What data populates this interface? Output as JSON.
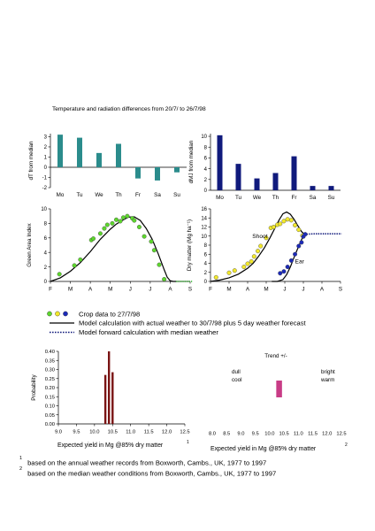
{
  "page": {
    "title": "Temperature and radiation differences from 20/7/ to 26/7/98",
    "footnotes": [
      {
        "mark": "1",
        "text": "based on the annual weather records from Boxworth, Cambs., UK,  1977 to 1997"
      },
      {
        "mark": "2",
        "text": "based on the median weather conditions from Boxworth, Cambs., UK, 1977 to 1997"
      }
    ],
    "legend": [
      {
        "marker": "dots",
        "text": "Crop data to 27/7/98"
      },
      {
        "marker": "solid-line",
        "text": "Model calculation with actual weather to 30/7/98 plus 5 day weather forecast"
      },
      {
        "marker": "dotted-line",
        "text": "Model forward calculation with median weather"
      }
    ],
    "colors": {
      "teal": "#2b8c8c",
      "navy": "#101a7c",
      "green": "#5dd62d",
      "yellow": "#f2e82a",
      "blue": "#1c2ab8",
      "darkred": "#7a1414",
      "pink": "#c83c86"
    }
  },
  "chart_data": [
    {
      "id": "dT",
      "type": "bar",
      "categories": [
        "Mo",
        "Tu",
        "We",
        "Th",
        "Fr",
        "Sa",
        "Su"
      ],
      "values": [
        3.2,
        2.9,
        1.4,
        2.3,
        -1.1,
        -1.3,
        -0.5
      ],
      "ylabel": "dT from median",
      "yticks": [
        "3",
        "2",
        "1",
        "0",
        "-1",
        "-2"
      ],
      "ylim": [
        -2,
        3.3
      ]
    },
    {
      "id": "dMJ",
      "type": "bar",
      "categories": [
        "Mo",
        "Tu",
        "We",
        "Th",
        "Fr",
        "Sa",
        "Su"
      ],
      "values": [
        10.2,
        4.9,
        2.2,
        3.2,
        6.3,
        0.8,
        0.8
      ],
      "ylabel": "dMJ from median",
      "yticks": [
        "10",
        "8",
        "6",
        "4",
        "2",
        "0"
      ],
      "ylim": [
        0,
        10.5
      ]
    },
    {
      "id": "gai",
      "type": "line",
      "xlabels": [
        "F",
        "M",
        "A",
        "M",
        "J",
        "J",
        "A",
        "S"
      ],
      "ylabel": "Green Area Index",
      "yticks": [
        "10",
        "8",
        "6",
        "4",
        "2",
        "0"
      ],
      "ylim": [
        0,
        10
      ],
      "series": [
        {
          "kind": "model-actual",
          "x": [
            1.0,
            1.5,
            2.0,
            2.5,
            3.0,
            3.5,
            4.0,
            4.3,
            4.6,
            4.9,
            5.2,
            5.5,
            5.8,
            6.1,
            6.4,
            6.7,
            6.85,
            7.0,
            7.15,
            7.3
          ],
          "y": [
            0,
            0.5,
            1.4,
            2.6,
            4.1,
            5.8,
            7.2,
            7.9,
            8.4,
            8.85,
            8.9,
            8.4,
            7.3,
            5.8,
            3.8,
            1.6,
            0.6,
            0.1,
            0,
            0
          ]
        },
        {
          "kind": "model-median",
          "x": [
            7.3,
            7.6,
            7.9,
            8.15
          ],
          "y": [
            0,
            0,
            0,
            0
          ]
        },
        {
          "kind": "observed",
          "x": [
            1.45,
            2.2,
            2.5,
            3.05,
            3.15,
            3.5,
            3.7,
            3.85,
            4.1,
            4.3,
            4.5,
            4.65,
            4.85,
            5.1,
            5.2,
            5.45,
            5.7,
            6.05,
            6.2,
            6.45,
            6.7
          ],
          "y": [
            1.0,
            2.2,
            3.0,
            5.7,
            5.9,
            6.6,
            7.3,
            7.8,
            8.0,
            8.5,
            8.3,
            8.8,
            9.0,
            8.7,
            8.4,
            7.5,
            6.2,
            5.5,
            4.3,
            2.3,
            0.3
          ]
        }
      ]
    },
    {
      "id": "drymatter",
      "type": "line",
      "xlabels": [
        "F",
        "M",
        "A",
        "M",
        "J",
        "J",
        "A",
        "S"
      ],
      "ylabel": "Dry matter (Mg ha⁻¹)",
      "yticks": [
        "16",
        "14",
        "12",
        "10",
        "8",
        "6",
        "4",
        "2",
        "0"
      ],
      "ylim": [
        0,
        16
      ],
      "annotations": [
        {
          "text": "Shoot",
          "x": 3.25,
          "y": 9.6
        },
        {
          "text": "Ear",
          "x": 5.55,
          "y": 4.0
        }
      ],
      "series": [
        {
          "kind": "model-shoot",
          "x": [
            1.0,
            1.5,
            2.0,
            2.5,
            3.0,
            3.3,
            3.6,
            3.9,
            4.2,
            4.5,
            4.7,
            4.9,
            5.1,
            5.3,
            5.5,
            5.7,
            5.9,
            6.05
          ],
          "y": [
            0,
            0.3,
            0.8,
            1.6,
            2.9,
            4.0,
            5.6,
            7.4,
            9.6,
            12.0,
            13.6,
            14.9,
            15.3,
            14.8,
            13.7,
            12.3,
            11.0,
            10.4
          ]
        },
        {
          "kind": "model-ear",
          "x": [
            4.3,
            4.6,
            4.9,
            5.1,
            5.3,
            5.5,
            5.7,
            5.9,
            6.05
          ],
          "y": [
            0,
            0,
            0.4,
            1.5,
            3.2,
            5.3,
            7.3,
            9.2,
            10.4
          ]
        },
        {
          "kind": "model-median",
          "x": [
            6.05,
            6.6,
            7.1,
            7.6,
            8.05
          ],
          "y": [
            10.4,
            10.5,
            10.5,
            10.5,
            10.5
          ]
        },
        {
          "kind": "observed-shoot",
          "x": [
            1.3,
            2.0,
            2.3,
            2.8,
            3.0,
            3.2,
            3.35,
            3.55,
            3.7,
            4.0,
            4.25,
            4.4,
            4.6,
            4.75,
            4.95,
            5.15,
            5.35,
            5.55,
            5.75,
            5.95
          ],
          "y": [
            0.9,
            1.9,
            2.4,
            3.2,
            3.9,
            4.4,
            5.5,
            6.7,
            7.8,
            9.6,
            11.8,
            12.0,
            12.5,
            12.7,
            13.3,
            13.7,
            13.5,
            12.4,
            11.4,
            10.1
          ]
        },
        {
          "kind": "observed-ear",
          "x": [
            4.75,
            4.95,
            5.15,
            5.35,
            5.55,
            5.75,
            5.9,
            6.0,
            6.1
          ],
          "y": [
            1.8,
            2.2,
            3.2,
            4.6,
            6.0,
            7.8,
            8.6,
            9.9,
            10.4
          ]
        }
      ]
    },
    {
      "id": "probability",
      "type": "bar",
      "xticks": [
        "9.0",
        "9.5",
        "10.0",
        "10.5",
        "11.0",
        "11.5",
        "12.0",
        "12.5"
      ],
      "xlim": [
        9.0,
        12.5
      ],
      "yticks": [
        "0.40",
        "0.35",
        "0.30",
        "0.25",
        "0.20",
        "0.15",
        "0.10",
        "0.05",
        "0.00"
      ],
      "ylim": [
        0,
        0.4
      ],
      "ylabel": "Probability",
      "xlabel": "Expected yield in Mg @85% dry matter",
      "xlabel_mark": "1",
      "x": [
        10.3,
        10.4,
        10.5
      ],
      "values": [
        0.27,
        0.4,
        0.285
      ]
    },
    {
      "id": "trend",
      "type": "range",
      "title": "Trend +/-",
      "xticks": [
        "8.0",
        "8.5",
        "9.0",
        "9.5",
        "10.0",
        "10.5",
        "11.0",
        "11.5",
        "12.0",
        "12.5"
      ],
      "xlim": [
        8.0,
        12.5
      ],
      "left_labels": [
        "dull",
        "cool"
      ],
      "right_labels": [
        "bright",
        "warm"
      ],
      "range": [
        10.23,
        10.43
      ],
      "xlabel": "Expected yield in Mg @85% dry matter",
      "xlabel_mark": "2"
    }
  ]
}
